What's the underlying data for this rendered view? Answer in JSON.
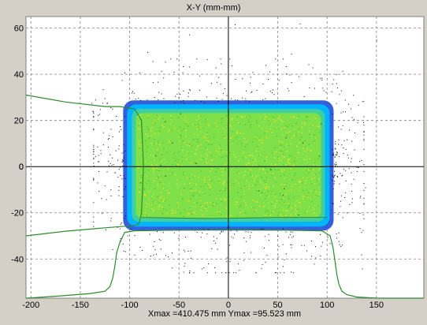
{
  "chart_data": {
    "type": "scatter",
    "title": "X-Y (mm-mm)",
    "footer": "Xmax =410.475 mm  Ymax =95.523 mm",
    "xlim": [
      -205,
      198
    ],
    "ylim": [
      -57,
      65
    ],
    "x_ticks": [
      -200,
      -150,
      -100,
      -50,
      0,
      50,
      100,
      150
    ],
    "y_ticks": [
      -40,
      -20,
      0,
      20,
      40,
      60
    ],
    "grid": true,
    "colors": {
      "background": "#ffffff",
      "frame": "#d4d0c8",
      "grid": "#808080",
      "axis": "#000000",
      "profile": "#2e8b2e",
      "density_low": "#1f4fd8",
      "density_mid": "#00b4ff",
      "density_high": "#7fe04a",
      "density_peak": "#f0e020",
      "halo_points": "#000000"
    },
    "beam_core": {
      "x_range": [
        -105,
        105
      ],
      "y_range": [
        -27,
        28
      ],
      "corner_radius_mm": 10
    },
    "series": [
      {
        "name": "",
        "role": "horizontal-profile",
        "x": [
          -205,
          -170,
          -140,
          -125,
          -120,
          -117,
          -115,
          -113,
          -110,
          -105,
          -95,
          -50,
          0,
          50,
          95,
          103,
          106,
          108,
          110,
          112,
          115,
          120,
          130,
          150,
          198
        ],
        "y": [
          -57,
          -56,
          -55,
          -54,
          -52,
          -48,
          -43,
          -37,
          -33,
          -28.5,
          -27.8,
          -27.5,
          -27.4,
          -27.5,
          -27.8,
          -30,
          -35,
          -41,
          -47,
          -51,
          -54,
          -55.5,
          -56.5,
          -57,
          -57
        ]
      },
      {
        "name": "",
        "role": "vertical-profile",
        "x": [
          -205,
          -165,
          -125,
          -110,
          -95,
          -88,
          -87,
          -86,
          -87,
          -88,
          -90,
          -92,
          -95,
          -110,
          -125,
          -165,
          -205
        ],
        "y": [
          31,
          28,
          26,
          26,
          25,
          20,
          10,
          0,
          -10,
          -20,
          -24,
          -25,
          -25.5,
          -26,
          -26.5,
          -28,
          -30
        ]
      },
      {
        "name": "",
        "role": "x-max-profile-line",
        "x": [
          -88,
          -20,
          50,
          100
        ],
        "y": [
          -22,
          -22.5,
          -22,
          -22
        ]
      }
    ]
  }
}
